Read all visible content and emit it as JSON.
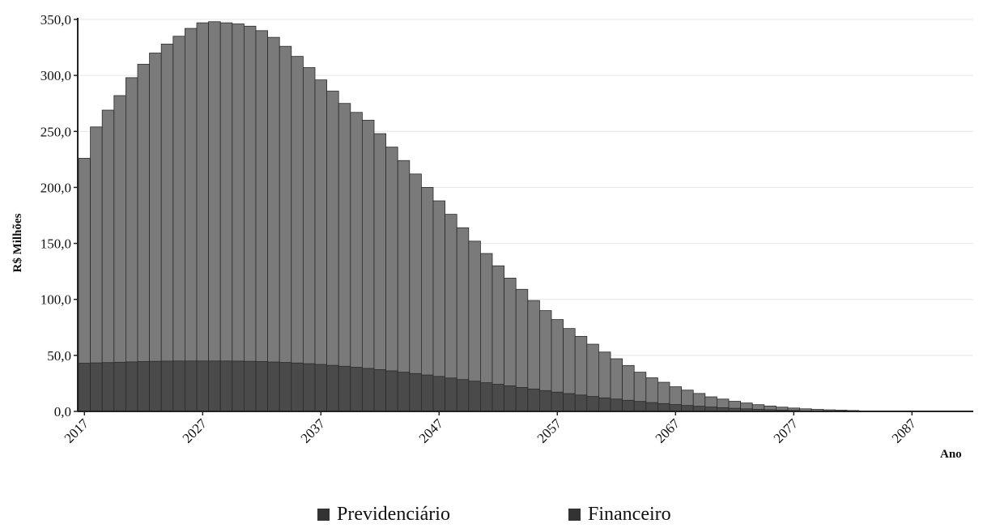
{
  "chart_data": {
    "type": "bar",
    "stacked": false,
    "overlapping": true,
    "ylabel": "R$ Milhões",
    "xlabel": "Ano",
    "ylim": [
      0,
      350
    ],
    "yticks": [
      "0,0",
      "50,0",
      "100,0",
      "150,0",
      "200,0",
      "250,0",
      "300,0",
      "350,0"
    ],
    "xticks": [
      "2017",
      "2027",
      "2037",
      "2047",
      "2057",
      "2067",
      "2077",
      "2087"
    ],
    "x_start": 2017,
    "x_end": 2092,
    "grid": true,
    "legend_position": "bottom",
    "series": [
      {
        "name": "Previdenciário",
        "color": "#7a7a7a",
        "values": [
          226,
          254,
          269,
          282,
          298,
          310,
          320,
          328,
          335,
          342,
          347,
          348,
          347,
          346,
          344,
          340,
          334,
          326,
          317,
          307,
          296,
          286,
          275,
          267,
          260,
          248,
          236,
          224,
          212,
          200,
          188,
          176,
          164,
          152,
          141,
          130,
          119,
          109,
          99,
          90,
          82,
          74,
          67,
          60,
          53,
          47,
          41,
          35,
          30,
          26,
          22,
          19,
          16,
          13,
          11,
          9,
          7.5,
          6,
          4.8,
          3.8,
          3.0,
          2.3,
          1.8,
          1.4,
          1.1,
          0.8,
          0.6,
          0.5,
          0.3,
          0.2,
          0.1,
          0.1,
          0.05,
          0,
          0,
          0
        ]
      },
      {
        "name": "Financeiro",
        "color": "#4a4a4a",
        "values": [
          43,
          43.3,
          43.6,
          43.9,
          44.2,
          44.5,
          44.7,
          44.9,
          45,
          45,
          45,
          45,
          45,
          44.9,
          44.7,
          44.5,
          44.1,
          43.7,
          43.2,
          42.6,
          41.9,
          41.1,
          40.3,
          39.4,
          38.4,
          37.3,
          36.2,
          35,
          33.8,
          32.5,
          31.2,
          29.8,
          28.4,
          27,
          25.6,
          24.2,
          22.8,
          21.4,
          20,
          18.6,
          17.2,
          15.9,
          14.6,
          13.3,
          12.1,
          11,
          9.9,
          8.9,
          7.9,
          7,
          6.1,
          5.3,
          4.6,
          3.9,
          3.3,
          2.8,
          2.3,
          1.9,
          1.5,
          1.2,
          0.9,
          0.7,
          0.5,
          0.4,
          0.3,
          0.2,
          0.15,
          0.1,
          0.05,
          0.05,
          0,
          0,
          0,
          0,
          0,
          0
        ]
      }
    ]
  },
  "legend": {
    "items": [
      {
        "label": "Previdenciário",
        "color": "#333333"
      },
      {
        "label": "Financeiro",
        "color": "#333333"
      }
    ]
  }
}
